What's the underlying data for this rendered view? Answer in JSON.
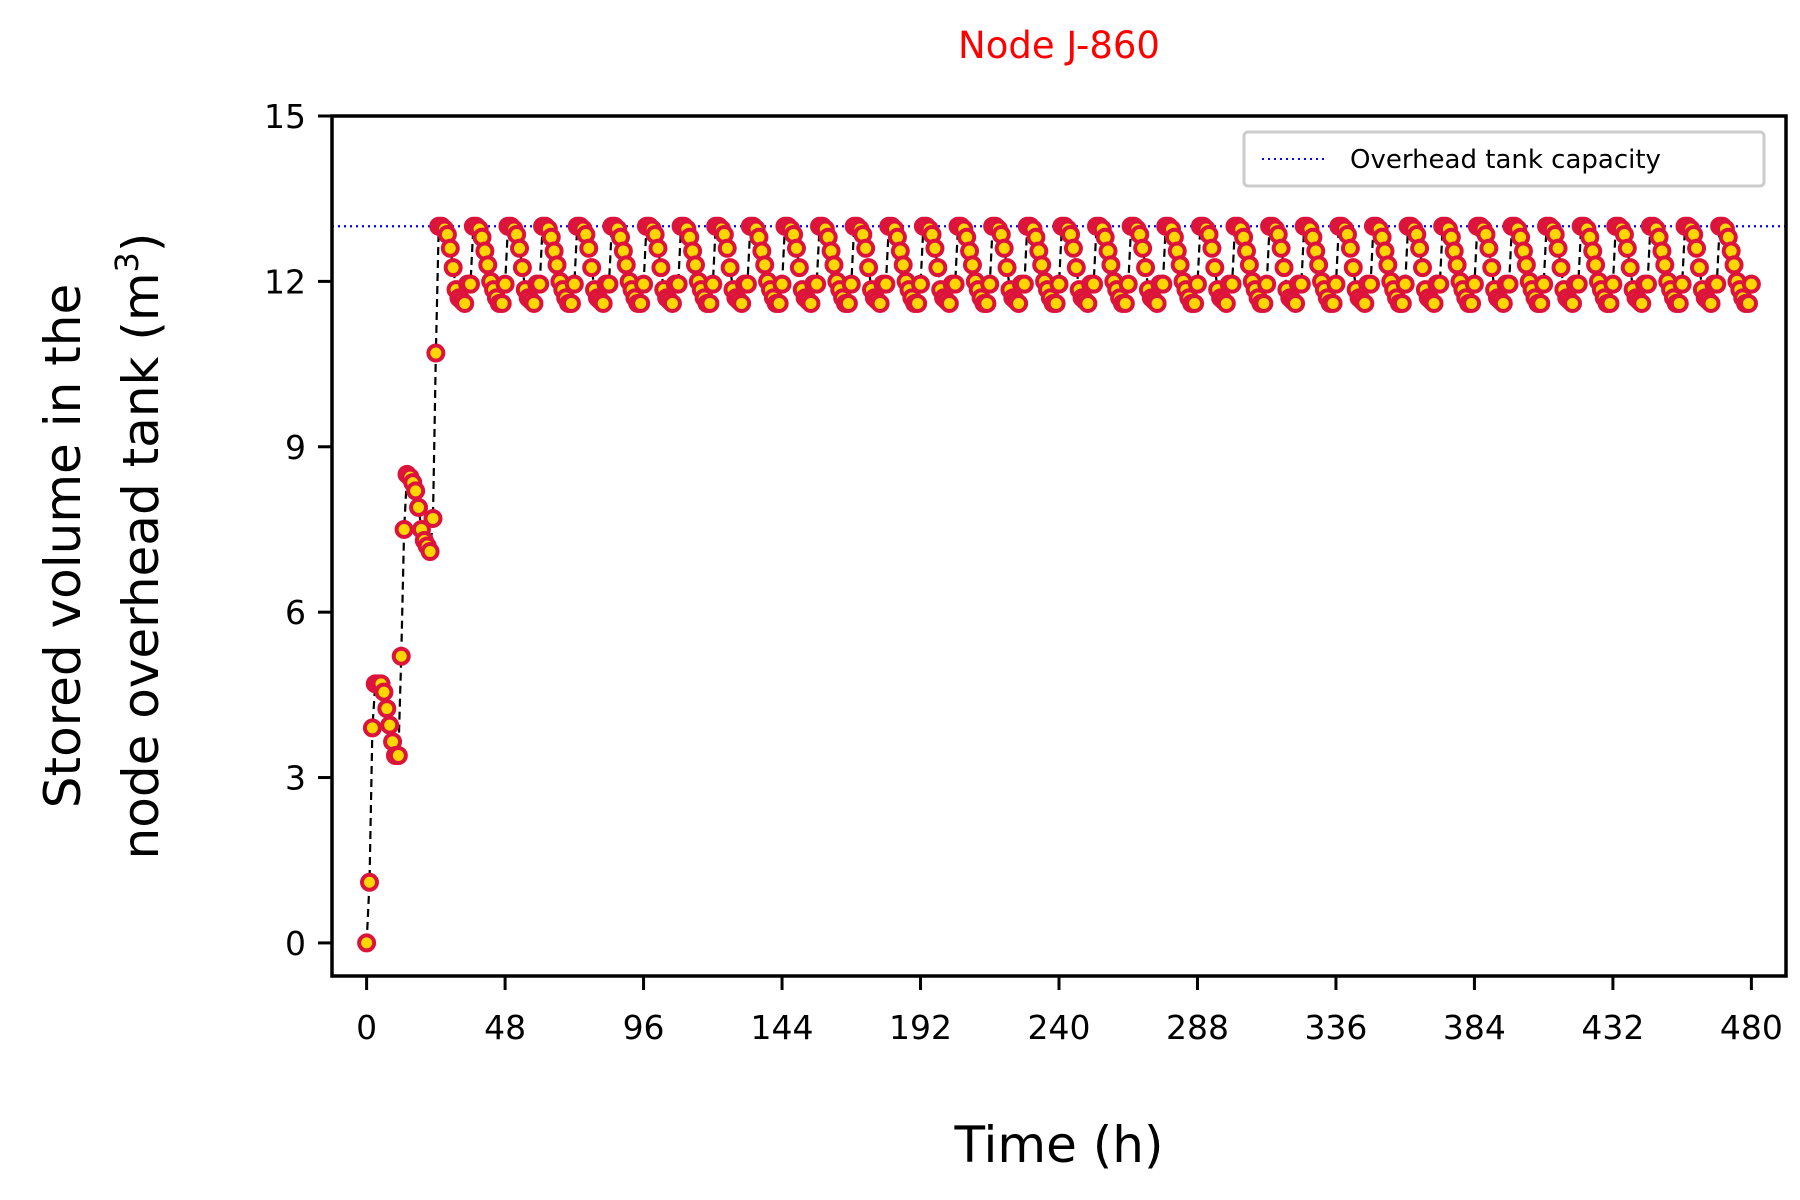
{
  "chart_data": {
    "type": "line",
    "title": "Node J-860",
    "title_color": "#ff0000",
    "xlabel": "Time (h)",
    "ylabel_line1": "Stored volume in the",
    "ylabel_line2_main": "node overhead tank (m",
    "ylabel_superscript": "3",
    "ylabel_line2_end": ")",
    "xlim": [
      -12,
      492
    ],
    "ylim": [
      -0.6,
      15
    ],
    "xticks": [
      0,
      48,
      96,
      144,
      192,
      240,
      288,
      336,
      384,
      432,
      480
    ],
    "yticks": [
      0,
      3,
      6,
      9,
      12,
      15
    ],
    "grid": false,
    "legend_position": "top-right",
    "reference_line": {
      "name": "Overhead tank capacity",
      "y": 13.0,
      "color": "#0000ff",
      "style": "dotted"
    },
    "series": [
      {
        "line_color": "#000000",
        "line_style": "dashed",
        "marker_edge_color": "#dc143c",
        "marker_face_color": "#ffd700",
        "startup": [
          [
            0,
            0.0
          ],
          [
            1,
            1.1
          ],
          [
            2,
            3.9
          ],
          [
            3,
            4.7
          ],
          [
            4,
            4.7
          ],
          [
            5,
            4.7
          ],
          [
            6,
            4.55
          ],
          [
            7,
            4.25
          ],
          [
            8,
            3.95
          ],
          [
            9,
            3.65
          ],
          [
            10,
            3.4
          ],
          [
            11,
            3.4
          ],
          [
            12,
            5.2
          ],
          [
            13,
            7.5
          ],
          [
            14,
            8.5
          ],
          [
            15,
            8.45
          ],
          [
            16,
            8.35
          ],
          [
            17,
            8.2
          ],
          [
            18,
            7.9
          ],
          [
            19,
            7.5
          ],
          [
            20,
            7.3
          ],
          [
            21,
            7.2
          ],
          [
            22,
            7.1
          ],
          [
            23,
            7.7
          ],
          [
            24,
            10.7
          ]
        ],
        "cycle_start_h": 25,
        "cycle_values": [
          13.0,
          13.0,
          12.95,
          12.85,
          12.6,
          12.25,
          11.85,
          11.7,
          11.65,
          11.6,
          11.95,
          11.95,
          13.0,
          13.0,
          12.95,
          12.8,
          12.55,
          12.3,
          12.0,
          11.85,
          11.7,
          11.6,
          11.6,
          11.95
        ]
      }
    ]
  }
}
